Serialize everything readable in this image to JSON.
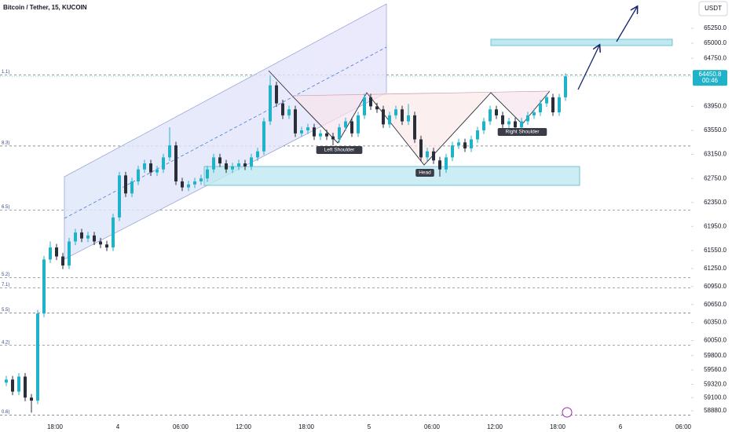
{
  "chart_data": {
    "type": "candlestick",
    "title": "Bitcoin / Tether, 15, KUCOIN",
    "currency": "USDT",
    "countdown": "00:46",
    "up_color": "#1fb2c8",
    "down_color": "#2a2e39",
    "xlim": [
      -1,
      109
    ],
    "ylim": [
      58658,
      65721
    ],
    "xticks": [
      {
        "value": 7.75,
        "label": "18:00"
      },
      {
        "value": 17.75,
        "label": "4"
      },
      {
        "value": 27.75,
        "label": "06:00"
      },
      {
        "value": 37.75,
        "label": "12:00"
      },
      {
        "value": 47.75,
        "label": "18:00"
      },
      {
        "value": 57.75,
        "label": "5"
      },
      {
        "value": 67.75,
        "label": "06:00"
      },
      {
        "value": 77.75,
        "label": "12:00"
      },
      {
        "value": 87.75,
        "label": "18:00"
      },
      {
        "value": 97.75,
        "label": "6"
      },
      {
        "value": 107.75,
        "label": "06:00"
      }
    ],
    "yticks": [
      {
        "value": 65250,
        "label": "65250.0"
      },
      {
        "value": 65000,
        "label": "65000.0"
      },
      {
        "value": 64750,
        "label": "64750.0"
      },
      {
        "value": 63950,
        "label": "63950.0"
      },
      {
        "value": 63550,
        "label": "63550.0"
      },
      {
        "value": 63150,
        "label": "63150.0"
      },
      {
        "value": 62750,
        "label": "62750.0"
      },
      {
        "value": 62350,
        "label": "62350.0"
      },
      {
        "value": 61950,
        "label": "61950.0"
      },
      {
        "value": 61550,
        "label": "61550.0"
      },
      {
        "value": 61250,
        "label": "61250.0"
      },
      {
        "value": 60950,
        "label": "60950.0"
      },
      {
        "value": 60650,
        "label": "60650.0"
      },
      {
        "value": 60350,
        "label": "60350.0"
      },
      {
        "value": 60050,
        "label": "60050.0"
      },
      {
        "value": 59800,
        "label": "59800.0"
      },
      {
        "value": 59560,
        "label": "59560.0"
      },
      {
        "value": 59320,
        "label": "59320.0"
      },
      {
        "value": 59100,
        "label": "59100.0"
      },
      {
        "value": 58880,
        "label": "58880.0"
      }
    ],
    "levels": [
      {
        "value": 64475,
        "label": "1.1)"
      },
      {
        "value": 63290,
        "label": "8.3)"
      },
      {
        "value": 62220,
        "label": "6.5)"
      },
      {
        "value": 61100,
        "label": "5.2)"
      },
      {
        "value": 60930,
        "label": "7.1)"
      },
      {
        "value": 60510,
        "label": "5.5)"
      },
      {
        "value": 59970,
        "label": "4.2)"
      },
      {
        "value": 58810,
        "label": "0.6)"
      }
    ],
    "annotations": [
      "Left Shoulder",
      "Head",
      "Right Shoulder"
    ],
    "open": [
      59350,
      59400,
      59200,
      59450,
      59100,
      59050,
      60500,
      61400,
      61600,
      61450,
      61300,
      61700,
      61850,
      61750,
      61800,
      61700,
      61650,
      61600,
      62100,
      62800,
      62500,
      62700,
      62900,
      63000,
      62850,
      62900,
      63100,
      63300,
      62700,
      62600,
      62650,
      62700,
      62750,
      62900,
      63100,
      63000,
      62900,
      62950,
      63000,
      62950,
      63100,
      63200,
      63700,
      64300,
      64000,
      63800,
      63900,
      63500,
      63550,
      63600,
      63450,
      63500,
      63450,
      63400,
      63600,
      63700,
      63500,
      63800,
      64100,
      63950,
      63900,
      63650,
      63800,
      63900,
      63700,
      63800,
      63400,
      63100,
      63200,
      63050,
      62900,
      63100,
      63300,
      63350,
      63250,
      63400,
      63550,
      63700,
      63900,
      63800,
      63650,
      63700,
      63600,
      63700,
      63800,
      63850,
      64000,
      64100,
      63850,
      64100
    ],
    "high": [
      59460,
      59460,
      59510,
      59510,
      59160,
      60560,
      61460,
      61700,
      61660,
      61510,
      61760,
      61910,
      61910,
      61860,
      61860,
      61760,
      61710,
      62160,
      62860,
      62860,
      62760,
      62960,
      63060,
      63060,
      62960,
      63160,
      63600,
      63360,
      62760,
      62710,
      62760,
      62810,
      62960,
      63160,
      63160,
      63060,
      63010,
      63060,
      63060,
      63160,
      63260,
      63760,
      64460,
      64360,
      64060,
      63960,
      63960,
      63610,
      63660,
      63660,
      63560,
      63560,
      63510,
      63660,
      63760,
      63760,
      63860,
      64160,
      64160,
      64010,
      63960,
      63860,
      63960,
      63960,
      63990,
      63860,
      63460,
      63260,
      63260,
      63110,
      63160,
      63360,
      63410,
      63410,
      63460,
      63610,
      63760,
      63960,
      63960,
      63860,
      63760,
      63760,
      63760,
      63860,
      63910,
      64060,
      64160,
      64160,
      64160,
      64500
    ],
    "low": [
      59290,
      59140,
      59140,
      59040,
      58850,
      58990,
      60440,
      61340,
      61390,
      61240,
      61240,
      61640,
      61690,
      61690,
      61640,
      61590,
      61540,
      61540,
      62040,
      62440,
      62440,
      62640,
      62840,
      62790,
      62790,
      62840,
      63040,
      62640,
      62540,
      62540,
      62590,
      62640,
      62690,
      62840,
      62940,
      62840,
      62840,
      62890,
      62890,
      62890,
      63040,
      63140,
      63640,
      63940,
      63740,
      63740,
      63440,
      63440,
      63490,
      63390,
      63390,
      63390,
      63300,
      63340,
      63540,
      63440,
      63440,
      63740,
      63890,
      63840,
      63590,
      63590,
      63740,
      63640,
      63640,
      63340,
      63040,
      63040,
      62990,
      62780,
      62840,
      63040,
      63240,
      63190,
      63190,
      63340,
      63490,
      63640,
      63740,
      63590,
      63590,
      63540,
      63540,
      63640,
      63740,
      63790,
      63940,
      63790,
      63790,
      64040
    ],
    "close": [
      59400,
      59200,
      59450,
      59100,
      59050,
      60500,
      61400,
      61600,
      61450,
      61300,
      61700,
      61850,
      61750,
      61800,
      61700,
      61650,
      61600,
      62100,
      62800,
      62500,
      62700,
      62900,
      63000,
      62850,
      62900,
      63100,
      63300,
      62700,
      62600,
      62650,
      62700,
      62750,
      62900,
      63100,
      63000,
      62900,
      62950,
      63000,
      62950,
      63100,
      63200,
      63700,
      64300,
      64000,
      63800,
      63900,
      63500,
      63550,
      63600,
      63450,
      63500,
      63450,
      63400,
      63600,
      63700,
      63500,
      63800,
      64100,
      63950,
      63900,
      63650,
      63800,
      63900,
      63700,
      63800,
      63400,
      63100,
      63200,
      63050,
      62900,
      63100,
      63300,
      63350,
      63250,
      63400,
      63550,
      63700,
      63900,
      63800,
      63650,
      63700,
      63600,
      63700,
      63800,
      63850,
      64000,
      64100,
      63850,
      64100,
      64450.8
    ]
  }
}
